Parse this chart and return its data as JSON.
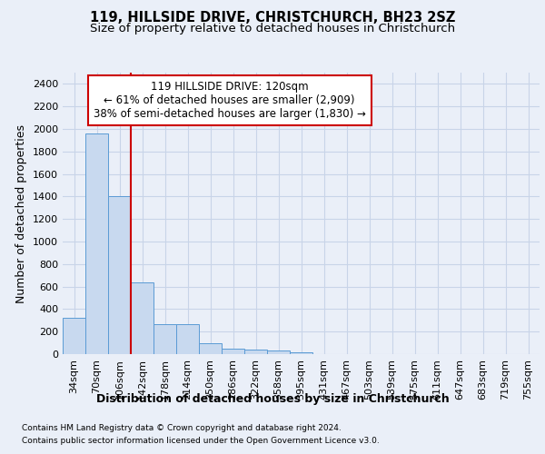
{
  "title_line1": "119, HILLSIDE DRIVE, CHRISTCHURCH, BH23 2SZ",
  "title_line2": "Size of property relative to detached houses in Christchurch",
  "xlabel": "Distribution of detached houses by size in Christchurch",
  "ylabel": "Number of detached properties",
  "footer_line1": "Contains HM Land Registry data © Crown copyright and database right 2024.",
  "footer_line2": "Contains public sector information licensed under the Open Government Licence v3.0.",
  "annotation_line1": "119 HILLSIDE DRIVE: 120sqm",
  "annotation_line2": "← 61% of detached houses are smaller (2,909)",
  "annotation_line3": "38% of semi-detached houses are larger (1,830) →",
  "bar_labels": [
    "34sqm",
    "70sqm",
    "106sqm",
    "142sqm",
    "178sqm",
    "214sqm",
    "250sqm",
    "286sqm",
    "322sqm",
    "358sqm",
    "395sqm",
    "431sqm",
    "467sqm",
    "503sqm",
    "539sqm",
    "575sqm",
    "611sqm",
    "647sqm",
    "683sqm",
    "719sqm",
    "755sqm"
  ],
  "bar_values": [
    325,
    1960,
    1400,
    640,
    270,
    270,
    100,
    50,
    40,
    35,
    20,
    0,
    0,
    0,
    0,
    0,
    0,
    0,
    0,
    0,
    0
  ],
  "bar_color": "#c8d9ef",
  "bar_edge_color": "#5b9bd5",
  "red_line_x": 2.5,
  "ylim": [
    0,
    2500
  ],
  "yticks": [
    0,
    200,
    400,
    600,
    800,
    1000,
    1200,
    1400,
    1600,
    1800,
    2000,
    2200,
    2400
  ],
  "grid_color": "#c8d4e8",
  "background_color": "#eaeff8",
  "plot_bg_color": "#eaeff8",
  "annotation_box_color": "#ffffff",
  "annotation_box_edge_color": "#cc0000",
  "red_line_color": "#cc0000",
  "title_fontsize": 10.5,
  "subtitle_fontsize": 9.5,
  "label_fontsize": 9,
  "tick_fontsize": 8,
  "annotation_fontsize": 8.5,
  "footer_fontsize": 6.5
}
